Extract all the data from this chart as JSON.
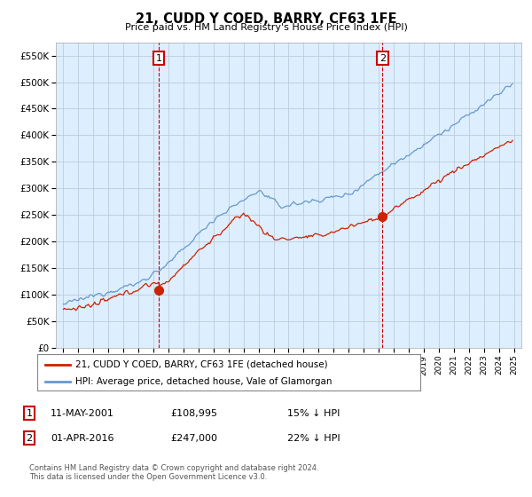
{
  "title": "21, CUDD Y COED, BARRY, CF63 1FE",
  "subtitle": "Price paid vs. HM Land Registry's House Price Index (HPI)",
  "ytick_values": [
    0,
    50000,
    100000,
    150000,
    200000,
    250000,
    300000,
    350000,
    400000,
    450000,
    500000,
    550000
  ],
  "ylim": [
    0,
    575000
  ],
  "xlim_start": 1994.5,
  "xlim_end": 2025.5,
  "annotation1": {
    "label": "1",
    "date": "11-MAY-2001",
    "price": "£108,995",
    "note": "15% ↓ HPI",
    "year": 2001.36,
    "value": 108995
  },
  "annotation2": {
    "label": "2",
    "date": "01-APR-2016",
    "price": "£247,000",
    "note": "22% ↓ HPI",
    "year": 2016.25,
    "value": 247000
  },
  "legend_line1": "21, CUDD Y COED, BARRY, CF63 1FE (detached house)",
  "legend_line2": "HPI: Average price, detached house, Vale of Glamorgan",
  "footnote1": "Contains HM Land Registry data © Crown copyright and database right 2024.",
  "footnote2": "This data is licensed under the Open Government Licence v3.0.",
  "line_color_red": "#cc2200",
  "line_color_blue": "#6699cc",
  "plot_bg_color": "#ddeeff",
  "fig_bg_color": "#ffffff",
  "grid_color": "#bbccdd",
  "annotation_box_color": "#cc0000"
}
